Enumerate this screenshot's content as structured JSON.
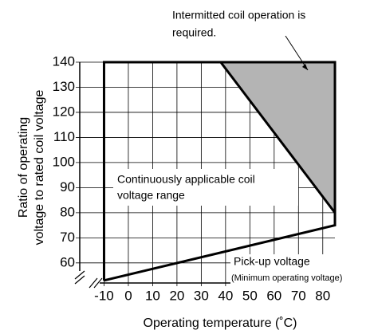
{
  "chart_data": {
    "type": "area",
    "xlabel": "Operating temperature (˚C)",
    "ylabel": [
      "Ratio of operating",
      "voltage to rated coil voltage"
    ],
    "xlim": [
      -20,
      85
    ],
    "ylim": [
      52,
      140
    ],
    "xticks": [
      -10,
      0,
      10,
      20,
      30,
      40,
      50,
      60,
      70,
      80
    ],
    "yticks": [
      60,
      70,
      80,
      90,
      100,
      110,
      120,
      130,
      140
    ],
    "grid": true,
    "operating_range": {
      "x": [
        -10,
        -10,
        85,
        85,
        -10
      ],
      "y": [
        53,
        140,
        140,
        75,
        53
      ],
      "color": "#000000"
    },
    "intermitted_region": {
      "x": [
        38,
        85,
        85
      ],
      "y": [
        140,
        140,
        80
      ],
      "color": "#b4b4b4"
    },
    "annotations": {
      "intermitted": [
        "Intermitted coil operation is",
        "required."
      ],
      "continuous": [
        "Continuously applicable coil",
        "voltage range"
      ],
      "pickup": [
        "Pick-up voltage",
        "(Minimum operating voltage)"
      ]
    }
  }
}
